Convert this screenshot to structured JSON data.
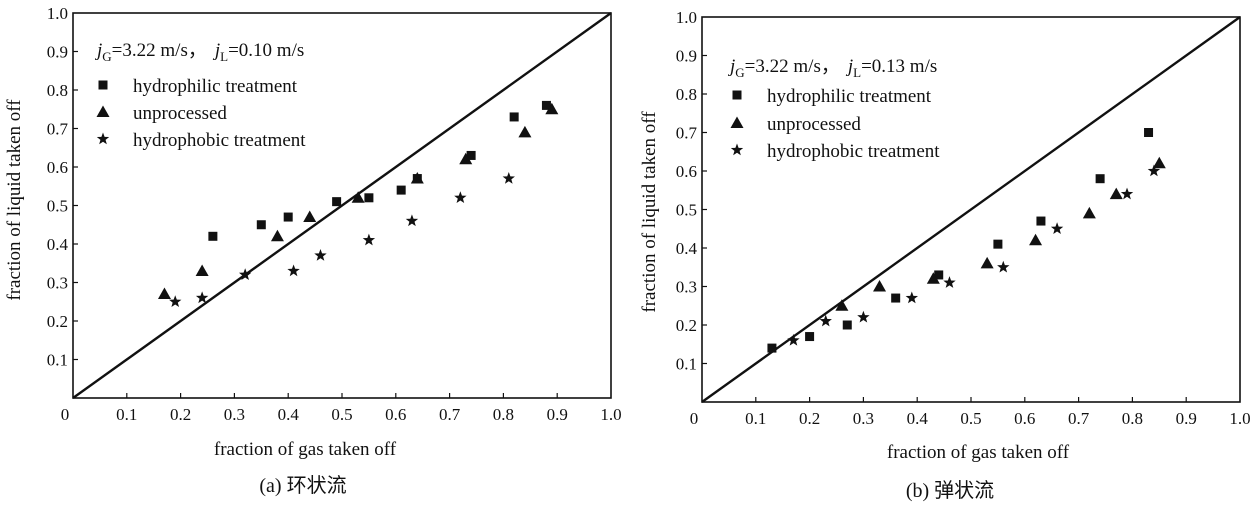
{
  "chart_data": [
    {
      "type": "scatter",
      "xlabel": "fraction of gas taken off",
      "ylabel": "fraction of liquid taken off",
      "xlim": [
        0,
        1.0
      ],
      "ylim": [
        0,
        1.0
      ],
      "xticks": [
        "0",
        "0.1",
        "0.2",
        "0.3",
        "0.4",
        "0.5",
        "0.6",
        "0.7",
        "0.8",
        "0.9",
        "1.0"
      ],
      "yticks": [
        "0.1",
        "0.2",
        "0.3",
        "0.4",
        "0.5",
        "0.6",
        "0.7",
        "0.8",
        "0.9",
        "1.0"
      ],
      "diagonal": "y = x",
      "legend_location": "top-left",
      "condition": {
        "jg_sym": "j",
        "jg_sub": "G",
        "jg_val": "=3.22 m/s，",
        "jl_sym": "j",
        "jl_sub": "L",
        "jl_val": "=0.10 m/s"
      },
      "caption": "(a) 环状流",
      "series": [
        {
          "name": "hydrophilic treatment",
          "marker": "square",
          "x": [
            0.26,
            0.35,
            0.4,
            0.49,
            0.55,
            0.61,
            0.64,
            0.74,
            0.82,
            0.88
          ],
          "y": [
            0.42,
            0.45,
            0.47,
            0.51,
            0.52,
            0.54,
            0.57,
            0.63,
            0.73,
            0.76
          ]
        },
        {
          "name": "unprocessed",
          "marker": "triangle",
          "x": [
            0.17,
            0.24,
            0.38,
            0.44,
            0.53,
            0.64,
            0.73,
            0.84,
            0.89
          ],
          "y": [
            0.27,
            0.33,
            0.42,
            0.47,
            0.52,
            0.57,
            0.62,
            0.69,
            0.75
          ]
        },
        {
          "name": "hydrophobic treatment",
          "marker": "star",
          "x": [
            0.19,
            0.24,
            0.32,
            0.41,
            0.46,
            0.55,
            0.63,
            0.72,
            0.81
          ],
          "y": [
            0.25,
            0.26,
            0.32,
            0.33,
            0.37,
            0.41,
            0.46,
            0.52,
            0.57
          ]
        }
      ]
    },
    {
      "type": "scatter",
      "xlabel": "fraction of gas taken off",
      "ylabel": "fraction of liquid taken off",
      "xlim": [
        0,
        1.0
      ],
      "ylim": [
        0,
        1.0
      ],
      "xticks": [
        "0",
        "0.1",
        "0.2",
        "0.3",
        "0.4",
        "0.5",
        "0.6",
        "0.7",
        "0.8",
        "0.9",
        "1.0"
      ],
      "yticks": [
        "0.1",
        "0.2",
        "0.3",
        "0.4",
        "0.5",
        "0.6",
        "0.7",
        "0.8",
        "0.9",
        "1.0"
      ],
      "diagonal": "y = x",
      "legend_location": "top-left",
      "condition": {
        "jg_sym": "j",
        "jg_sub": "G",
        "jg_val": "=3.22 m/s，",
        "jl_sym": "j",
        "jl_sub": "L",
        "jl_val": "=0.13 m/s"
      },
      "caption": "(b) 弹状流",
      "series": [
        {
          "name": "hydrophilic treatment",
          "marker": "square",
          "x": [
            0.13,
            0.2,
            0.27,
            0.36,
            0.44,
            0.55,
            0.63,
            0.74,
            0.83
          ],
          "y": [
            0.14,
            0.17,
            0.2,
            0.27,
            0.33,
            0.41,
            0.47,
            0.58,
            0.7
          ]
        },
        {
          "name": "unprocessed",
          "marker": "triangle",
          "x": [
            0.26,
            0.33,
            0.43,
            0.53,
            0.62,
            0.72,
            0.77,
            0.85
          ],
          "y": [
            0.25,
            0.3,
            0.32,
            0.36,
            0.42,
            0.49,
            0.54,
            0.62
          ]
        },
        {
          "name": "hydrophobic treatment",
          "marker": "star",
          "x": [
            0.17,
            0.23,
            0.3,
            0.39,
            0.46,
            0.56,
            0.66,
            0.79,
            0.84
          ],
          "y": [
            0.16,
            0.21,
            0.22,
            0.27,
            0.31,
            0.35,
            0.45,
            0.54,
            0.6
          ]
        }
      ]
    }
  ]
}
